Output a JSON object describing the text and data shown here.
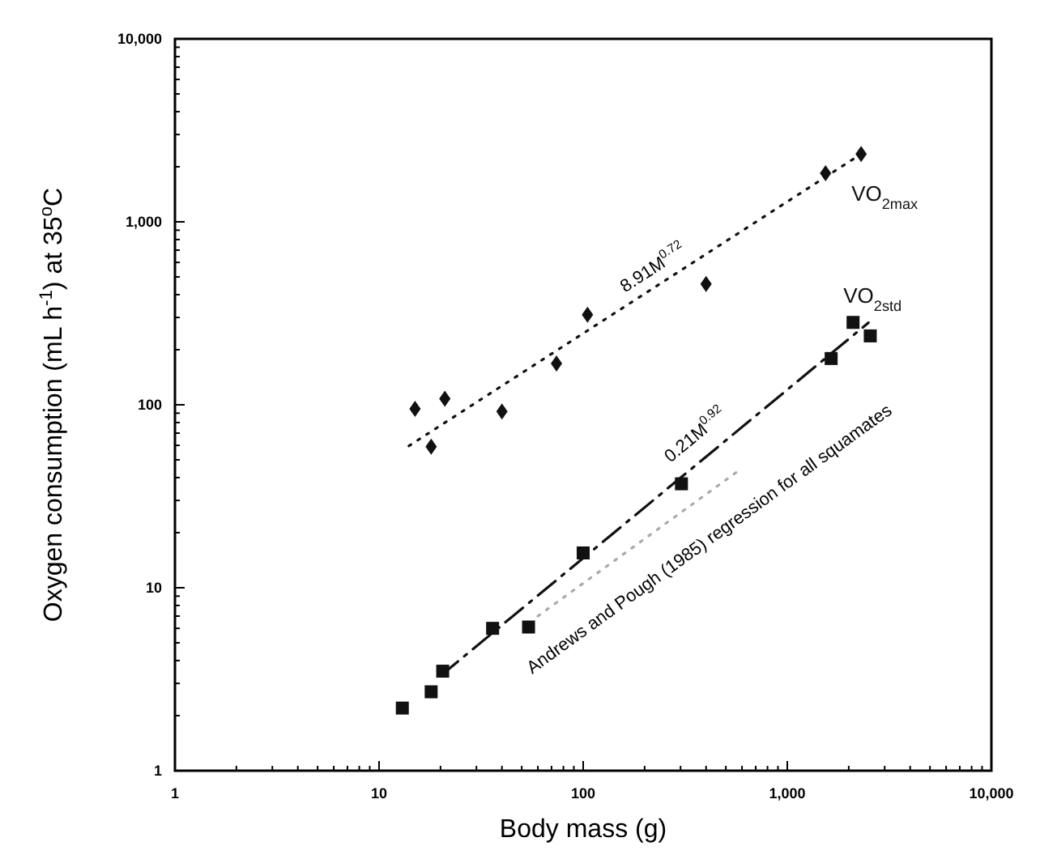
{
  "chart_data": {
    "type": "scatter",
    "xlabel": "Body mass (g)",
    "ylabel": "Oxygen consumption (mL h$^{-1}$) at 35$^{o}$C",
    "log": "xy",
    "grid": false,
    "legend": false,
    "xlim": [
      1,
      10000
    ],
    "ylim": [
      1,
      10000
    ],
    "xticks": [
      {
        "value": 1,
        "label": "1"
      },
      {
        "value": 2,
        "label": null
      },
      {
        "value": 3,
        "label": null
      },
      {
        "value": 4,
        "label": null
      },
      {
        "value": 5,
        "label": null
      },
      {
        "value": 6,
        "label": null
      },
      {
        "value": 7,
        "label": null
      },
      {
        "value": 8,
        "label": null
      },
      {
        "value": 9,
        "label": null
      },
      {
        "value": 10,
        "label": "10"
      },
      {
        "value": 20,
        "label": null
      },
      {
        "value": 30,
        "label": null
      },
      {
        "value": 40,
        "label": null
      },
      {
        "value": 50,
        "label": null
      },
      {
        "value": 60,
        "label": null
      },
      {
        "value": 70,
        "label": null
      },
      {
        "value": 80,
        "label": null
      },
      {
        "value": 90,
        "label": null
      },
      {
        "value": 100,
        "label": "100"
      },
      {
        "value": 200,
        "label": null
      },
      {
        "value": 300,
        "label": null
      },
      {
        "value": 400,
        "label": null
      },
      {
        "value": 500,
        "label": null
      },
      {
        "value": 600,
        "label": null
      },
      {
        "value": 700,
        "label": null
      },
      {
        "value": 800,
        "label": null
      },
      {
        "value": 900,
        "label": null
      },
      {
        "value": 1000,
        "label": "1,000"
      },
      {
        "value": 2000,
        "label": null
      },
      {
        "value": 3000,
        "label": null
      },
      {
        "value": 4000,
        "label": null
      },
      {
        "value": 5000,
        "label": null
      },
      {
        "value": 6000,
        "label": null
      },
      {
        "value": 7000,
        "label": null
      },
      {
        "value": 8000,
        "label": null
      },
      {
        "value": 9000,
        "label": null
      },
      {
        "value": 10000,
        "label": "10,000"
      }
    ],
    "yticks": [
      {
        "value": 1,
        "label": "1"
      },
      {
        "value": 2,
        "label": null
      },
      {
        "value": 3,
        "label": null
      },
      {
        "value": 4,
        "label": null
      },
      {
        "value": 5,
        "label": null
      },
      {
        "value": 6,
        "label": null
      },
      {
        "value": 7,
        "label": null
      },
      {
        "value": 8,
        "label": null
      },
      {
        "value": 9,
        "label": null
      },
      {
        "value": 10,
        "label": "10"
      },
      {
        "value": 20,
        "label": null
      },
      {
        "value": 30,
        "label": null
      },
      {
        "value": 40,
        "label": null
      },
      {
        "value": 50,
        "label": null
      },
      {
        "value": 60,
        "label": null
      },
      {
        "value": 70,
        "label": null
      },
      {
        "value": 80,
        "label": null
      },
      {
        "value": 90,
        "label": null
      },
      {
        "value": 100,
        "label": "100"
      },
      {
        "value": 200,
        "label": null
      },
      {
        "value": 300,
        "label": null
      },
      {
        "value": 400,
        "label": null
      },
      {
        "value": 500,
        "label": null
      },
      {
        "value": 600,
        "label": null
      },
      {
        "value": 700,
        "label": null
      },
      {
        "value": 800,
        "label": null
      },
      {
        "value": 900,
        "label": null
      },
      {
        "value": 1000,
        "label": "1,000"
      },
      {
        "value": 2000,
        "label": null
      },
      {
        "value": 3000,
        "label": null
      },
      {
        "value": 4000,
        "label": null
      },
      {
        "value": 5000,
        "label": null
      },
      {
        "value": 6000,
        "label": null
      },
      {
        "value": 7000,
        "label": null
      },
      {
        "value": 8000,
        "label": null
      },
      {
        "value": 9000,
        "label": null
      },
      {
        "value": 10000,
        "label": "10,000"
      }
    ],
    "series": [
      {
        "name": "VO$_{2max}$",
        "marker": "diamond",
        "color": "#111111",
        "x": [
          15,
          18,
          21,
          40,
          74,
          105,
          400,
          1540,
          2300
        ],
        "values": [
          95,
          59,
          108,
          92,
          168,
          311,
          458,
          1845,
          2350
        ]
      },
      {
        "name": "VO$_{2std}$",
        "marker": "square",
        "color": "#111111",
        "x": [
          13,
          18,
          20.5,
          36,
          54,
          100,
          303,
          1640,
          2100,
          2550
        ],
        "values": [
          2.2,
          2.7,
          3.5,
          6.0,
          6.1,
          15.5,
          37,
          179,
          282,
          238
        ]
      },
      {
        "type": "line",
        "line_style": "dotted",
        "color": "#111111",
        "x": [
          14,
          2300
        ],
        "values": [
          59.6,
          2348
        ]
      },
      {
        "type": "line",
        "line_style": "dashed",
        "color": "#111111",
        "x": [
          20,
          2500
        ],
        "values": [
          3.3,
          281
        ]
      },
      {
        "type": "line",
        "line_style": "dotted",
        "color": "#aaaaaa",
        "x": [
          60,
          600
        ],
        "values": [
          7,
          45
        ]
      }
    ],
    "annotations": [
      "8.91M$^{0.72}$",
      "0.21M$^{0.92}$",
      "Andrews and Pough (1985) regression for all squamates"
    ]
  }
}
